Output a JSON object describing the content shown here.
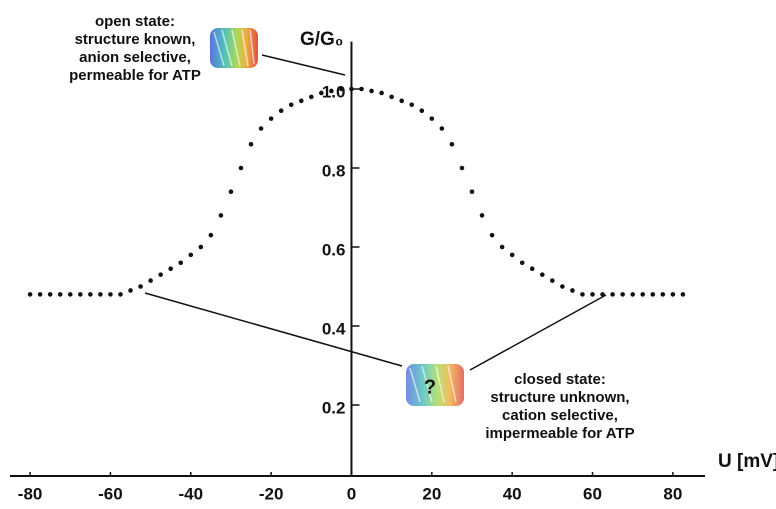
{
  "chart_data": {
    "type": "dot-line",
    "xlabel": "U [mV]",
    "ylabel": "G/G₀",
    "x": [
      -80,
      -77.5,
      -75,
      -72.5,
      -70,
      -67.5,
      -65,
      -62.5,
      -60,
      -57.5,
      -55,
      -52.5,
      -50,
      -47.5,
      -45,
      -42.5,
      -40,
      -37.5,
      -35,
      -32.5,
      -30,
      -27.5,
      -25,
      -22.5,
      -20,
      -17.5,
      -15,
      -12.5,
      -10,
      -7.5,
      -5,
      -2.5,
      0,
      2.5,
      5,
      7.5,
      10,
      12.5,
      15,
      17.5,
      20,
      22.5,
      25,
      27.5,
      30,
      32.5,
      35,
      37.5,
      40,
      42.5,
      45,
      47.5,
      50,
      52.5,
      55,
      57.5,
      60,
      62.5,
      65,
      67.5,
      70,
      72.5,
      75,
      77.5,
      80,
      82.5
    ],
    "values": [
      0.48,
      0.48,
      0.48,
      0.48,
      0.48,
      0.48,
      0.48,
      0.48,
      0.48,
      0.48,
      0.49,
      0.5,
      0.515,
      0.53,
      0.545,
      0.56,
      0.58,
      0.6,
      0.63,
      0.68,
      0.74,
      0.8,
      0.86,
      0.9,
      0.925,
      0.945,
      0.96,
      0.97,
      0.98,
      0.99,
      0.995,
      1.0,
      1.0,
      1.0,
      0.995,
      0.99,
      0.98,
      0.97,
      0.96,
      0.945,
      0.925,
      0.9,
      0.86,
      0.8,
      0.74,
      0.68,
      0.63,
      0.6,
      0.58,
      0.56,
      0.545,
      0.53,
      0.515,
      0.5,
      0.49,
      0.48,
      0.48,
      0.48,
      0.48,
      0.48,
      0.48,
      0.48,
      0.48,
      0.48,
      0.48,
      0.48
    ],
    "color": "#111111",
    "xlim": [
      -85,
      88
    ],
    "ylim": [
      0,
      1.12
    ],
    "xticks": [
      -80,
      -60,
      -40,
      -20,
      0,
      20,
      40,
      60,
      80
    ],
    "yticks": [
      0.2,
      0.4,
      0.6,
      0.8,
      {
        "value": 1,
        "label": "1.0"
      }
    ],
    "annotations": {
      "open": [
        "open state:",
        "structure known,",
        "anion selective,",
        "permeable for ATP"
      ],
      "closed": [
        "closed state:",
        "structure unknown,",
        "cation selective,",
        "impermeable for ATP"
      ],
      "closed_mark": "?"
    }
  }
}
